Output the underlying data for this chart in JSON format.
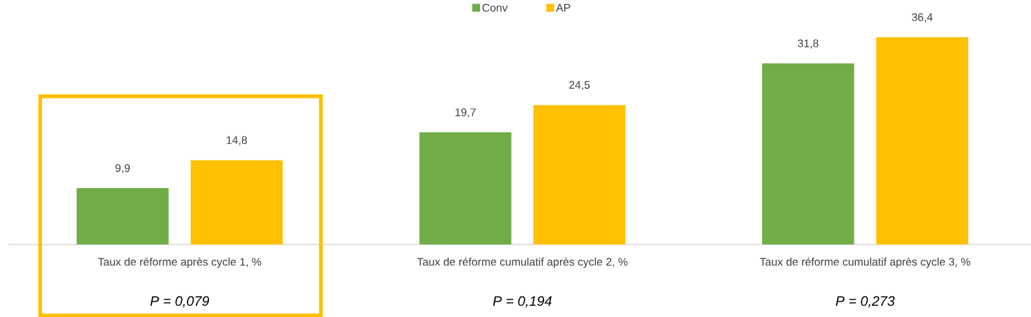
{
  "chart_data": {
    "type": "bar",
    "categories": [
      "Taux de réforme après cycle 1, %",
      "Taux de réforme cumulatif après cycle 2, %",
      "Taux de réforme cumulatif après cycle 3, %"
    ],
    "series": [
      {
        "name": "Conv",
        "color": "#70ad47",
        "values": [
          9.9,
          19.7,
          31.8
        ],
        "value_labels": [
          "9,9",
          "19,7",
          "31,8"
        ]
      },
      {
        "name": "AP",
        "color": "#ffc000",
        "values": [
          14.8,
          24.5,
          36.4
        ],
        "value_labels": [
          "14,8",
          "24,5",
          "36,4"
        ]
      }
    ],
    "annotations": [
      "P = 0,079",
      "P = 0,194",
      "P = 0,273"
    ],
    "legend": "top"
  }
}
